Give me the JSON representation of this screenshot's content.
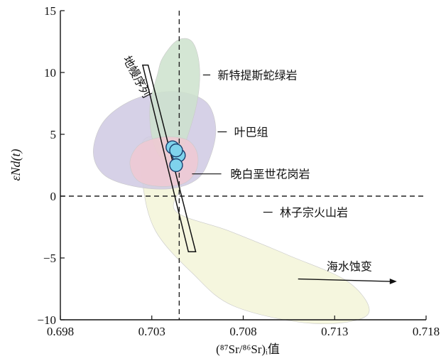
{
  "chart_data": {
    "type": "scatter",
    "xlabel": "(⁸⁷Sr/⁸⁶Sr)ᵢ值",
    "ylabel": "εNd(t)",
    "xlim": [
      0.698,
      0.718
    ],
    "ylim": [
      -10,
      15
    ],
    "x_ticks": [
      {
        "value": 0.698,
        "label": "0.698"
      },
      {
        "value": 0.703,
        "label": "0.703"
      },
      {
        "value": 0.708,
        "label": "0.708"
      },
      {
        "value": 0.713,
        "label": "0.713"
      },
      {
        "value": 0.718,
        "label": "0.718"
      }
    ],
    "y_ticks": [
      {
        "value": -10,
        "label": "−10"
      },
      {
        "value": -5,
        "label": "−5"
      },
      {
        "value": 0,
        "label": "0"
      },
      {
        "value": 5,
        "label": "5"
      },
      {
        "value": 10,
        "label": "10"
      },
      {
        "value": 15,
        "label": "15"
      }
    ],
    "reference_lines": {
      "vertical_x": 0.7045,
      "horizontal_y": 0
    },
    "fields": [
      {
        "name": "海水蚀变",
        "color": "#f3f5d8",
        "outline": [
          [
            0.7043,
            -1.2
          ],
          [
            0.7072,
            -2.8
          ],
          [
            0.7105,
            -4.8
          ],
          [
            0.7138,
            -7.0
          ],
          [
            0.7148,
            -9.6
          ],
          [
            0.7118,
            -10.3
          ],
          [
            0.7075,
            -8.9
          ],
          [
            0.7052,
            -6.2
          ],
          [
            0.7032,
            -2.8
          ],
          [
            0.7025,
            1.0
          ],
          [
            0.7025,
            4.4
          ],
          [
            0.7036,
            4.4
          ],
          [
            0.7046,
            1.2
          ]
        ]
      },
      {
        "name": "叶巴组",
        "color": "#cfc9e3",
        "outline": [
          [
            0.7035,
            8.4
          ],
          [
            0.705,
            8.3
          ],
          [
            0.7061,
            7.4
          ],
          [
            0.7065,
            5.4
          ],
          [
            0.7062,
            3.2
          ],
          [
            0.7055,
            1.4
          ],
          [
            0.704,
            0.6
          ],
          [
            0.702,
            0.8
          ],
          [
            0.7004,
            1.7
          ],
          [
            0.6998,
            3.5
          ],
          [
            0.7003,
            5.9
          ],
          [
            0.7017,
            7.6
          ]
        ]
      },
      {
        "name": "新特提斯蛇绿岩",
        "color": "#cde2cc",
        "outline": [
          [
            0.7044,
            12.6
          ],
          [
            0.7052,
            12.5
          ],
          [
            0.7056,
            10.6
          ],
          [
            0.7055,
            7.8
          ],
          [
            0.7049,
            4.6
          ],
          [
            0.7043,
            2.9
          ],
          [
            0.7035,
            3.1
          ],
          [
            0.703,
            4.8
          ],
          [
            0.7029,
            7.4
          ],
          [
            0.7033,
            9.8
          ],
          [
            0.7036,
            11.2
          ]
        ]
      },
      {
        "name": "晚白垩世花岗岩",
        "color": "#f0c9d2",
        "outline": [
          [
            0.704,
            4.8
          ],
          [
            0.705,
            4.5
          ],
          [
            0.7055,
            3.4
          ],
          [
            0.7054,
            2.0
          ],
          [
            0.7047,
            1.0
          ],
          [
            0.7033,
            0.8
          ],
          [
            0.7022,
            1.3
          ],
          [
            0.7018,
            2.7
          ],
          [
            0.7022,
            4.0
          ],
          [
            0.703,
            4.6
          ]
        ]
      }
    ],
    "mantle_array": {
      "label": "地幔序列",
      "outline": [
        [
          0.7025,
          10.6
        ],
        [
          0.7028,
          10.6
        ],
        [
          0.7054,
          -4.5
        ],
        [
          0.705,
          -4.5
        ]
      ]
    },
    "points": [
      {
        "x": 0.70413,
        "y": 3.95
      },
      {
        "x": 0.70448,
        "y": 3.3
      },
      {
        "x": 0.70433,
        "y": 3.7
      },
      {
        "x": 0.70433,
        "y": 2.5
      }
    ],
    "annotations": [
      {
        "text": "新特提斯蛇绿岩",
        "line_x": [
          0.7058,
          0.7062
        ],
        "line_y": 9.8,
        "text_x": 0.7066,
        "text_y": 9.8
      },
      {
        "text": "叶巴组",
        "line_x": [
          0.7066,
          0.7071
        ],
        "line_y": 5.2,
        "text_x": 0.7075,
        "text_y": 5.2
      },
      {
        "text": "晚白垩世花岗岩",
        "line_x": [
          0.7052,
          0.7068
        ],
        "line_y": 1.8,
        "text_x": 0.7073,
        "text_y": 1.8
      },
      {
        "text": "林子宗火山岩",
        "line_x": [
          0.7091,
          0.7096
        ],
        "line_y": -1.3,
        "text_x": 0.71,
        "text_y": -1.3
      }
    ],
    "alteration_arrow": {
      "text": "海水蚀变",
      "from": [
        0.711,
        -6.7
      ],
      "to": [
        0.7164,
        -6.9
      ],
      "text_x": 0.7138,
      "text_y": -6.0
    },
    "mantle_label_anchor": {
      "x": 0.702,
      "y": 9.5
    }
  }
}
